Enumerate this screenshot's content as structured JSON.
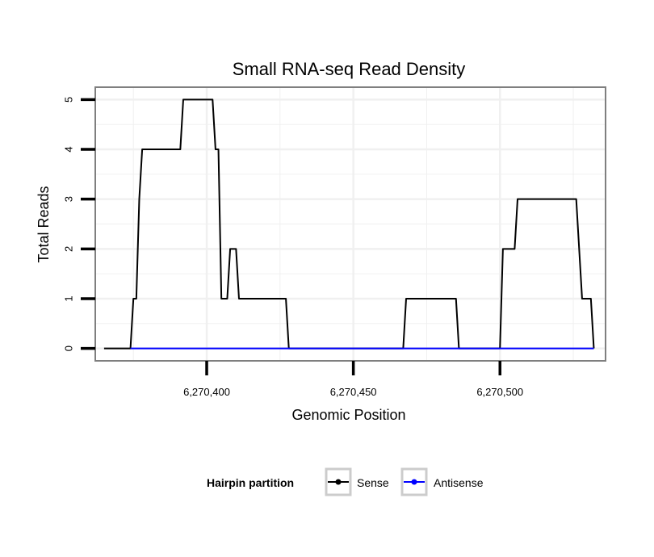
{
  "chart_data": {
    "type": "line",
    "title": "Small RNA-seq Read Density",
    "xlabel": "Genomic Position",
    "ylabel": "Total Reads",
    "xlim": [
      6270362,
      6270536
    ],
    "ylim": [
      -0.25,
      5.25
    ],
    "x_ticks": [
      6270400,
      6270450,
      6270500
    ],
    "x_tick_labels": [
      "6,270,400",
      "6,270,450",
      "6,270,500"
    ],
    "y_ticks": [
      0,
      1,
      2,
      3,
      4,
      5
    ],
    "y_tick_labels": [
      "0",
      "1",
      "2",
      "3",
      "4",
      "5"
    ],
    "grid": true,
    "legend": {
      "title": "Hairpin partition",
      "position": "bottom",
      "entries": [
        "Sense",
        "Antisense"
      ]
    },
    "series": [
      {
        "name": "Sense",
        "color": "#000000",
        "points": [
          [
            6270365,
            0
          ],
          [
            6270374,
            0
          ],
          [
            6270375,
            1
          ],
          [
            6270376,
            1
          ],
          [
            6270377,
            3
          ],
          [
            6270378,
            4
          ],
          [
            6270391,
            4
          ],
          [
            6270392,
            5
          ],
          [
            6270402,
            5
          ],
          [
            6270403,
            4
          ],
          [
            6270404,
            4
          ],
          [
            6270405,
            1
          ],
          [
            6270407,
            1
          ],
          [
            6270408,
            2
          ],
          [
            6270410,
            2
          ],
          [
            6270411,
            1
          ],
          [
            6270427,
            1
          ],
          [
            6270428,
            0
          ],
          [
            6270467,
            0
          ],
          [
            6270468,
            1
          ],
          [
            6270485,
            1
          ],
          [
            6270486,
            0
          ],
          [
            6270500,
            0
          ],
          [
            6270501,
            2
          ],
          [
            6270505,
            2
          ],
          [
            6270506,
            3
          ],
          [
            6270526,
            3
          ],
          [
            6270528,
            1
          ],
          [
            6270531,
            1
          ],
          [
            6270532,
            0
          ]
        ]
      },
      {
        "name": "Antisense",
        "color": "#0000ff",
        "points": [
          [
            6270374,
            0
          ],
          [
            6270532,
            0
          ]
        ]
      }
    ]
  }
}
